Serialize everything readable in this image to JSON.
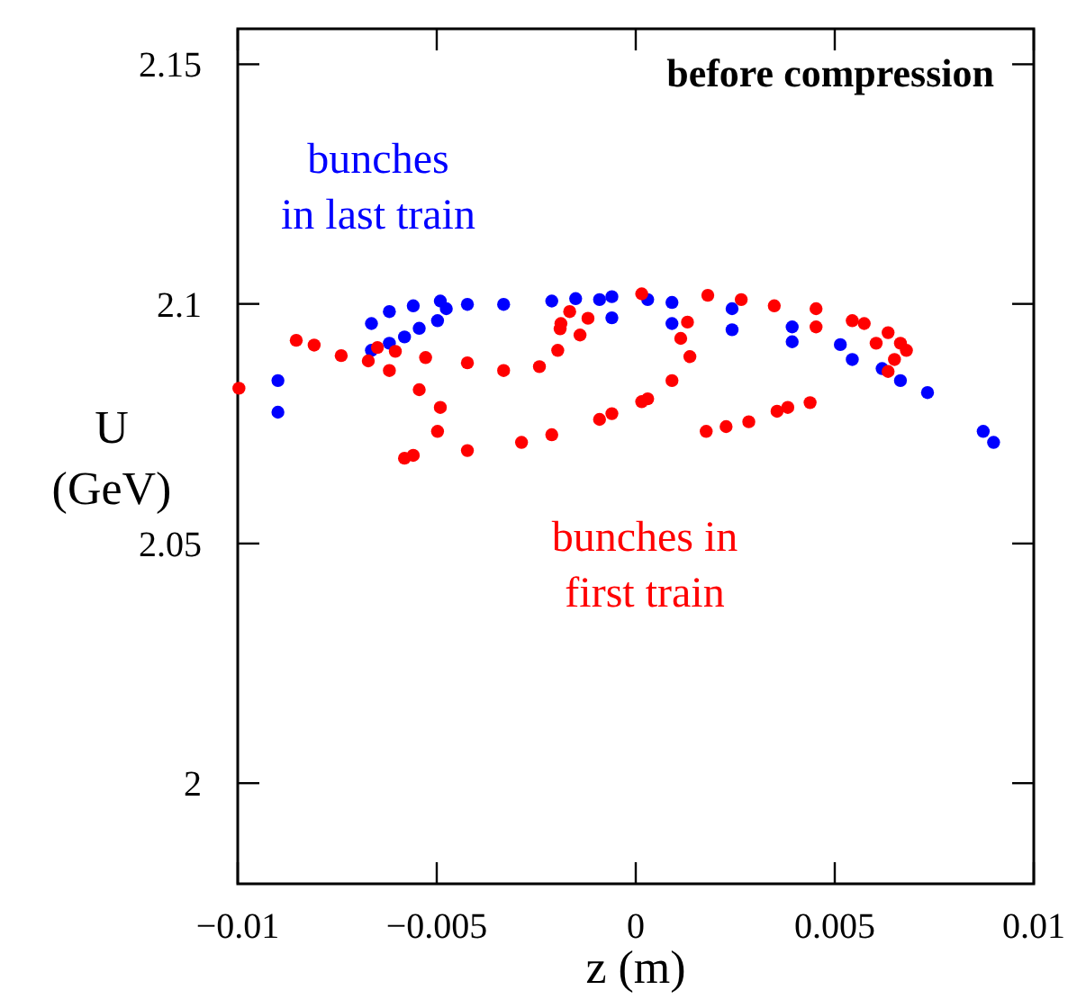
{
  "chart_data": {
    "type": "scatter",
    "title": "before compression",
    "xlabel": "z (m)",
    "ylabel": "U\n(GeV)",
    "xlim": [
      -0.01,
      0.01
    ],
    "xticks": [
      {
        "value": -0.01,
        "label": "−0.01"
      },
      {
        "value": -0.005,
        "label": "−0.005"
      },
      0,
      0.005,
      0.01
    ],
    "ylim": [
      1.979,
      2.1574
    ],
    "yticks": [
      2,
      2.05,
      2.1,
      2.15
    ],
    "grid": false,
    "marker": "circle",
    "series": [
      {
        "name": "bunches\nin last train",
        "color": "#0000ff",
        "x": [
          -0.00899,
          -0.00899,
          -0.00664,
          -0.00619,
          -0.00559,
          -0.00491,
          -0.00423,
          -0.00332,
          -0.00211,
          -0.00151,
          -0.00091,
          0.0003,
          -0.00664,
          -0.00619,
          -0.00581,
          -0.00544,
          -0.00498,
          -0.00476,
          -0.0006,
          0.00091,
          0.00242,
          0.00393,
          0.00514,
          0.00619,
          -0.0006,
          0.00091,
          0.00242,
          0.00393,
          0.00544,
          0.00665,
          0.00733,
          0.00873,
          0.00899
        ],
        "values": [
          2.084,
          2.0774,
          2.0959,
          2.0984,
          2.0996,
          2.1006,
          2.0999,
          2.0999,
          2.1006,
          2.1011,
          2.1009,
          2.1009,
          2.0903,
          2.0918,
          2.0931,
          2.0949,
          2.0965,
          2.099,
          2.1015,
          2.1003,
          2.099,
          2.0952,
          2.0915,
          2.0865,
          2.0971,
          2.0959,
          2.0946,
          2.0921,
          2.0884,
          2.084,
          2.0815,
          2.0734,
          2.0711
        ]
      },
      {
        "name": "bunches in\nfirst train",
        "color": "#ff0000",
        "x": [
          -0.00997,
          -0.00853,
          -0.00808,
          -0.0074,
          -0.00672,
          -0.00649,
          -0.00604,
          -0.00528,
          -0.00423,
          -0.00332,
          -0.00242,
          -0.00196,
          -0.00188,
          -0.00166,
          -0.0014,
          -0.0012,
          -0.0019,
          -0.00619,
          -0.00544,
          -0.00491,
          -0.00498,
          -0.00559,
          -0.00581,
          -0.00423,
          -0.00287,
          -0.00211,
          -0.00091,
          0.00015,
          -0.0006,
          0.0003,
          0.00091,
          0.00136,
          0.00113,
          0.0013,
          0.00015,
          0.00181,
          0.00265,
          0.00348,
          0.00453,
          0.00453,
          0.00544,
          0.00574,
          0.00634,
          0.00604,
          0.00665,
          0.0068,
          0.0065,
          0.00634,
          0.00177,
          0.00227,
          0.00284,
          0.00355,
          0.00382,
          0.00438
        ],
        "values": [
          2.0824,
          2.0924,
          2.0914,
          2.0892,
          2.0881,
          2.0909,
          2.0901,
          2.0888,
          2.0877,
          2.0861,
          2.0869,
          2.0903,
          2.0959,
          2.0984,
          2.0935,
          2.097,
          2.0948,
          2.0861,
          2.0821,
          2.0784,
          2.0734,
          2.0684,
          2.0678,
          2.0694,
          2.0711,
          2.0727,
          2.0759,
          2.0796,
          2.0771,
          2.0802,
          2.084,
          2.089,
          2.0928,
          2.0962,
          2.1021,
          2.1018,
          2.1009,
          2.0996,
          2.099,
          2.0952,
          2.0965,
          2.0959,
          2.094,
          2.0918,
          2.0918,
          2.0903,
          2.0884,
          2.0859,
          2.0734,
          2.0744,
          2.0754,
          2.0776,
          2.0784,
          2.0794
        ]
      }
    ]
  }
}
